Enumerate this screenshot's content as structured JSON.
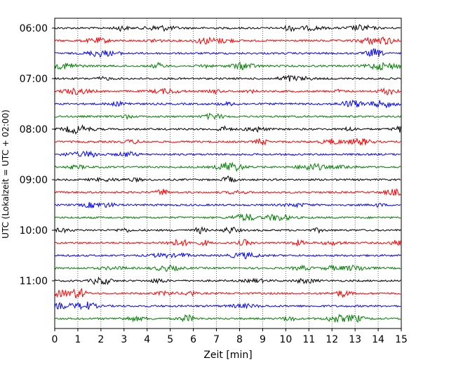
{
  "chart_data": {
    "type": "line",
    "xlabel": "Zeit  [min]",
    "ylabel": "UTC (Lokalzeit = UTC + 02:00)",
    "xlim": [
      0,
      15
    ],
    "x_ticks": [
      "0",
      "1",
      "2",
      "3",
      "4",
      "5",
      "6",
      "7",
      "8",
      "9",
      "10",
      "11",
      "12",
      "13",
      "14",
      "15"
    ],
    "y_ticks": [
      "06:00",
      "07:00",
      "08:00",
      "09:00",
      "10:00",
      "11:00"
    ],
    "trace_start_minutes": [
      0,
      15,
      30,
      45,
      60,
      75,
      90,
      105,
      120,
      135,
      150,
      165,
      180,
      195,
      210,
      225,
      240,
      255,
      270,
      285,
      300,
      315,
      330,
      345
    ],
    "trace_colors": [
      "#000000",
      "#ff0000",
      "#0000ff",
      "#008000"
    ],
    "grid": "vertical dotted",
    "legend": "none"
  }
}
